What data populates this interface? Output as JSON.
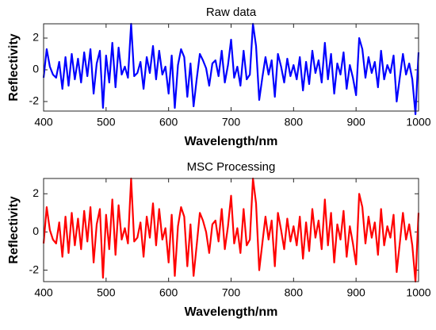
{
  "chart_data": [
    {
      "type": "line",
      "title": "Raw data",
      "x_label": "Wavelength/nm",
      "y_label": "Reflectivity",
      "x": [
        400,
        405,
        410,
        415,
        420,
        425,
        430,
        435,
        440,
        445,
        450,
        455,
        460,
        465,
        470,
        475,
        480,
        485,
        490,
        495,
        500,
        505,
        510,
        515,
        520,
        525,
        530,
        535,
        540,
        545,
        550,
        555,
        560,
        565,
        570,
        575,
        580,
        585,
        590,
        595,
        600,
        605,
        610,
        615,
        620,
        625,
        630,
        635,
        640,
        645,
        650,
        655,
        660,
        665,
        670,
        675,
        680,
        685,
        690,
        695,
        700,
        705,
        710,
        715,
        720,
        725,
        730,
        735,
        740,
        745,
        750,
        755,
        760,
        765,
        770,
        775,
        780,
        785,
        790,
        795,
        800,
        805,
        810,
        815,
        820,
        825,
        830,
        835,
        840,
        845,
        850,
        855,
        860,
        865,
        870,
        875,
        880,
        885,
        890,
        895,
        900,
        905,
        910,
        915,
        920,
        925,
        930,
        935,
        940,
        945,
        950,
        955,
        960,
        965,
        970,
        975,
        980,
        985,
        990,
        995,
        1000
      ],
      "series": [
        {
          "name": "Raw data",
          "color": "#0000ff",
          "values": [
            -0.5,
            1.3,
            0.2,
            -0.3,
            -0.5,
            0.5,
            -1.2,
            0.8,
            -1,
            1,
            -0.6,
            0.7,
            -0.8,
            1.1,
            -0.4,
            1.3,
            -1.5,
            0.4,
            1.2,
            -2.4,
            0.9,
            -0.8,
            1.7,
            -1.1,
            1.4,
            -0.3,
            0.2,
            -0.5,
            2.9,
            -0.4,
            -0.2,
            0.5,
            -1.2,
            0.8,
            -0.2,
            1.5,
            -0.6,
            1.2,
            -0.3,
            0.2,
            -1.5,
            0.9,
            -2.4,
            0.3,
            1.3,
            0.8,
            -1.7,
            0.4,
            -2.3,
            -0.6,
            1.0,
            0.6,
            0.1,
            -1.0,
            0.4,
            0.6,
            -0.4,
            1.2,
            -0.8,
            0.3,
            1.9,
            -0.5,
            0.2,
            -1.0,
            1.2,
            -0.6,
            -0.3,
            2.9,
            1.5,
            -1.9,
            -0.5,
            0.8,
            -0.3,
            0.6,
            -1.7,
            1.0,
            0.2,
            -0.8,
            0.7,
            -0.4,
            0.3,
            -0.6,
            0.8,
            -1.3,
            0.5,
            -0.9,
            1.2,
            -0.2,
            0.6,
            -0.8,
            1.7,
            -0.6,
            1.0,
            -1.5,
            0.4,
            -0.3,
            1.1,
            -1.2,
            0.3,
            -0.5,
            -1.6,
            2.0,
            1.3,
            -0.5,
            0.8,
            -0.2,
            0.5,
            -1.1,
            1.2,
            -0.6,
            0.3,
            -0.2,
            0.9,
            -2.0,
            -0.5,
            1.0,
            -0.3,
            0.4,
            -0.6,
            -2.8,
            1.1
          ]
        }
      ],
      "xlim": [
        400,
        1000
      ],
      "xticks": [
        400,
        500,
        600,
        700,
        800,
        900,
        1000
      ],
      "ylim": [
        -2.6,
        2.9
      ],
      "yticks": [
        -2,
        0,
        2
      ]
    },
    {
      "type": "line",
      "title": "MSC Processing",
      "x_label": "Wavelength/nm",
      "y_label": "Reflectivity",
      "x": [
        400,
        405,
        410,
        415,
        420,
        425,
        430,
        435,
        440,
        445,
        450,
        455,
        460,
        465,
        470,
        475,
        480,
        485,
        490,
        495,
        500,
        505,
        510,
        515,
        520,
        525,
        530,
        535,
        540,
        545,
        550,
        555,
        560,
        565,
        570,
        575,
        580,
        585,
        590,
        595,
        600,
        605,
        610,
        615,
        620,
        625,
        630,
        635,
        640,
        645,
        650,
        655,
        660,
        665,
        670,
        675,
        680,
        685,
        690,
        695,
        700,
        705,
        710,
        715,
        720,
        725,
        730,
        735,
        740,
        745,
        750,
        755,
        760,
        765,
        770,
        775,
        780,
        785,
        790,
        795,
        800,
        805,
        810,
        815,
        820,
        825,
        830,
        835,
        840,
        845,
        850,
        855,
        860,
        865,
        870,
        875,
        880,
        885,
        890,
        895,
        900,
        905,
        910,
        915,
        920,
        925,
        930,
        935,
        940,
        945,
        950,
        955,
        960,
        965,
        970,
        975,
        980,
        985,
        990,
        995,
        1000
      ],
      "series": [
        {
          "name": "MSC Processing",
          "color": "#ff0000",
          "values": [
            -0.6,
            1.3,
            0.1,
            -0.4,
            -0.6,
            0.5,
            -1.3,
            0.8,
            -1.1,
            1,
            -0.7,
            0.7,
            -0.9,
            1.1,
            -0.5,
            1.3,
            -1.6,
            0.4,
            1.2,
            -2.4,
            0.9,
            -0.9,
            1.7,
            -1.2,
            1.4,
            -0.4,
            0.2,
            -0.6,
            2.8,
            -0.5,
            -0.3,
            0.5,
            -1.3,
            0.8,
            -0.3,
            1.5,
            -0.7,
            1.2,
            -0.4,
            0.2,
            -1.6,
            0.9,
            -2.3,
            0.3,
            1.3,
            0.8,
            -1.8,
            0.4,
            -2.3,
            -0.7,
            1.0,
            0.6,
            0.0,
            -1.1,
            0.4,
            0.6,
            -0.5,
            1.2,
            -0.9,
            0.3,
            1.9,
            -0.6,
            0.2,
            -1.1,
            1.2,
            -0.7,
            -0.4,
            2.8,
            1.5,
            -2.0,
            -0.6,
            0.8,
            -0.4,
            0.6,
            -1.8,
            1.0,
            0.1,
            -0.9,
            0.7,
            -0.5,
            0.3,
            -0.7,
            0.8,
            -1.4,
            0.5,
            -1.0,
            1.2,
            -0.3,
            0.6,
            -0.9,
            1.7,
            -0.7,
            1.0,
            -1.6,
            0.4,
            -0.4,
            1.1,
            -1.3,
            0.3,
            -0.6,
            -1.7,
            2.0,
            1.3,
            -0.6,
            0.8,
            -0.3,
            0.5,
            -1.2,
            1.2,
            -0.7,
            0.3,
            -0.3,
            0.9,
            -2.1,
            -0.6,
            1.0,
            -0.4,
            0.4,
            -0.7,
            -2.6,
            1.0
          ]
        }
      ],
      "xlim": [
        400,
        1000
      ],
      "xticks": [
        400,
        500,
        600,
        700,
        800,
        900,
        1000
      ],
      "ylim": [
        -2.6,
        2.8
      ],
      "yticks": [
        -2,
        0,
        2
      ]
    }
  ]
}
